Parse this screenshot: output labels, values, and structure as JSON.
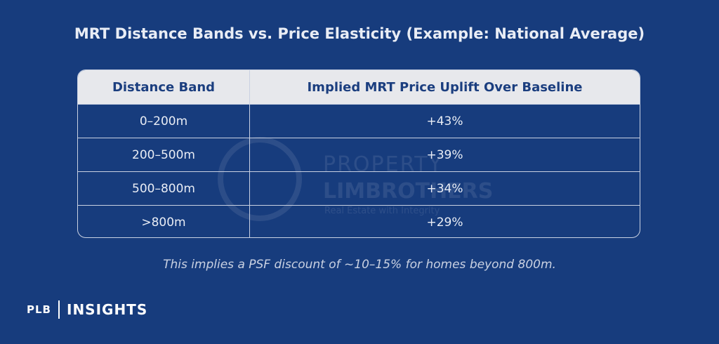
{
  "title": "MRT Distance Bands vs. Price Elasticity (Example: National Average)",
  "table": {
    "header": [
      "Distance Band",
      "Implied MRT Price Uplift Over Baseline"
    ],
    "rows": [
      [
        "0–200m",
        "+43%"
      ],
      [
        "200–500m",
        "+39%"
      ],
      [
        "500–800m",
        "+34%"
      ],
      [
        ">800m",
        "+29%"
      ]
    ]
  },
  "note": "This implies a PSF discount of ~10–15% for homes beyond 800m.",
  "watermark": {
    "line1": "PROPERTY",
    "line2": "LIMBROTHERS",
    "tagline": "Real Estate with Integrity"
  },
  "footer": {
    "brand": "PLB",
    "section": "INSIGHTS"
  }
}
